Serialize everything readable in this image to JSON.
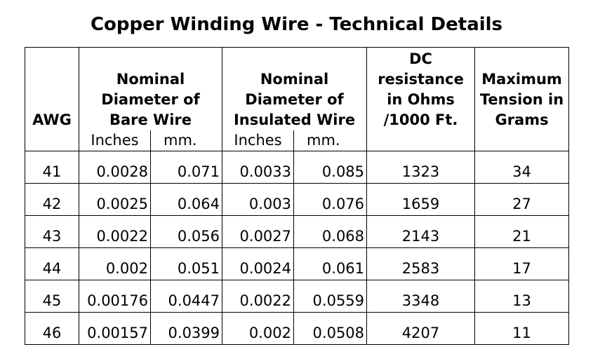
{
  "title": "Copper Winding Wire - Technical Details",
  "headers": {
    "awg": "AWG",
    "bare": "Nominal Diameter of Bare Wire",
    "insulated": "Nominal Diameter of Insulated Wire",
    "dc": "DC resistance in Ohms /1000 Ft.",
    "tension": "Maximum Tension in Grams"
  },
  "units": {
    "bare_in": "Inches",
    "bare_mm": "mm.",
    "ins_in": "Inches",
    "ins_mm": "mm."
  },
  "rows": [
    {
      "awg": "41",
      "bare_in": "0.0028",
      "bare_mm": "0.071",
      "ins_in": "0.0033",
      "ins_mm": "0.085",
      "dc": "1323",
      "tension": "34"
    },
    {
      "awg": "42",
      "bare_in": "0.0025",
      "bare_mm": "0.064",
      "ins_in": "0.003",
      "ins_mm": "0.076",
      "dc": "1659",
      "tension": "27"
    },
    {
      "awg": "43",
      "bare_in": "0.0022",
      "bare_mm": "0.056",
      "ins_in": "0.0027",
      "ins_mm": "0.068",
      "dc": "2143",
      "tension": "21"
    },
    {
      "awg": "44",
      "bare_in": "0.002",
      "bare_mm": "0.051",
      "ins_in": "0.0024",
      "ins_mm": "0.061",
      "dc": "2583",
      "tension": "17"
    },
    {
      "awg": "45",
      "bare_in": "0.00176",
      "bare_mm": "0.0447",
      "ins_in": "0.0022",
      "ins_mm": "0.0559",
      "dc": "3348",
      "tension": "13"
    },
    {
      "awg": "46",
      "bare_in": "0.00157",
      "bare_mm": "0.0399",
      "ins_in": "0.002",
      "ins_mm": "0.0508",
      "dc": "4207",
      "tension": "11"
    }
  ]
}
